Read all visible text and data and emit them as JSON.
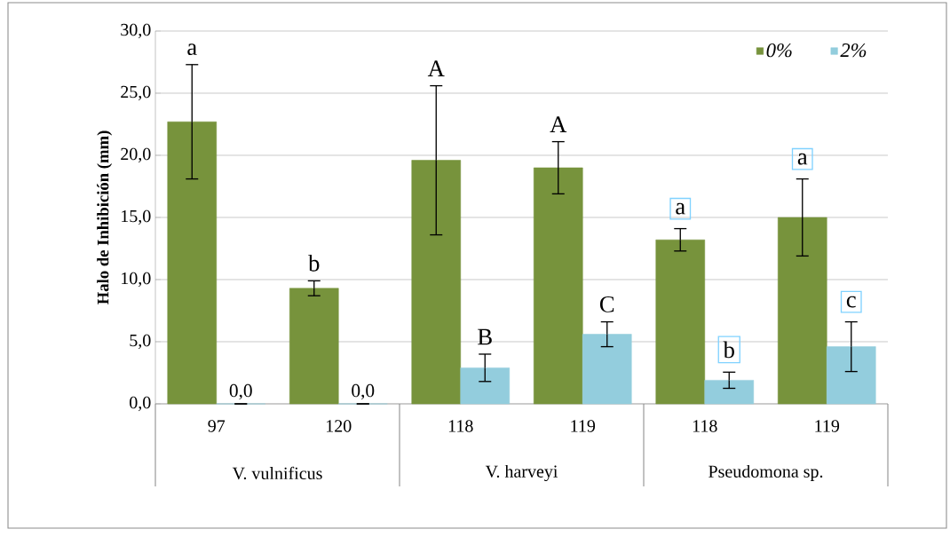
{
  "chart_data": {
    "type": "bar",
    "ylabel": "Halo de Inhibición (mm)",
    "categories": [
      "97",
      "120",
      "118",
      "119",
      "118",
      "119"
    ],
    "series": [
      {
        "name": "0%",
        "color": "#77933c",
        "values": [
          22.7,
          9.3,
          19.6,
          19.0,
          13.2,
          15.0
        ],
        "errors": [
          4.6,
          0.6,
          6.0,
          2.1,
          0.9,
          3.1
        ]
      },
      {
        "name": "2%",
        "color": "#93cddd",
        "values": [
          0.0,
          0.0,
          2.9,
          5.6,
          1.9,
          4.6
        ],
        "errors": [
          null,
          null,
          1.1,
          1.0,
          0.65,
          2.0
        ],
        "value_labels": [
          "0,0",
          "0,0",
          null,
          null,
          null,
          null
        ]
      }
    ],
    "ylim": [
      0,
      30
    ],
    "yticks": [
      {
        "value": 0,
        "label": "0,0"
      },
      {
        "value": 5,
        "label": "5,0"
      },
      {
        "value": 10,
        "label": "10,0"
      },
      {
        "value": 15,
        "label": "15,0"
      },
      {
        "value": 20,
        "label": "20,0"
      },
      {
        "value": 25,
        "label": "25,0"
      },
      {
        "value": 30,
        "label": "30,0"
      }
    ],
    "grid": "y",
    "legend": "top right",
    "annotations": [
      "a",
      "b",
      "A",
      "B",
      "A",
      "C",
      "a",
      "b",
      "a",
      "c",
      "V. vulnificus",
      "V. harveyi",
      "Pseudomona sp."
    ]
  }
}
